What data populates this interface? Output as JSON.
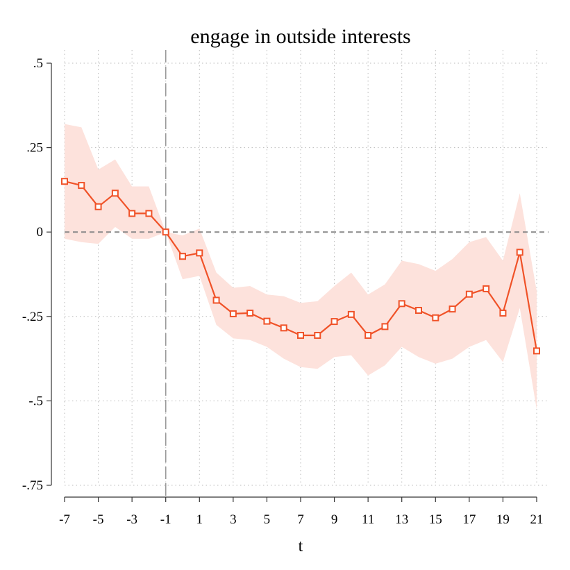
{
  "chart_data": {
    "type": "line",
    "title": "engage in outside interests",
    "xlabel": "t",
    "ylabel": "",
    "xlim": [
      -7,
      21
    ],
    "ylim": [
      -0.75,
      0.5
    ],
    "x_ticks": [
      -7,
      -5,
      -3,
      -1,
      1,
      3,
      5,
      7,
      9,
      11,
      13,
      15,
      17,
      19,
      21
    ],
    "x_tick_labels": [
      "-7",
      "-5",
      "-3",
      "-1",
      "1",
      "3",
      "5",
      "7",
      "9",
      "11",
      "13",
      "15",
      "17",
      "19",
      "21"
    ],
    "y_ticks": [
      0.5,
      0.25,
      0,
      -0.25,
      -0.5,
      -0.75
    ],
    "y_tick_labels": [
      ".5",
      ".25",
      "0",
      "-.25",
      "-.5",
      "-.75"
    ],
    "grid": true,
    "reference_lines": {
      "vertical_x": -1,
      "horizontal_y": 0
    },
    "colors": {
      "line": "#f05228",
      "ci_band": "#fde2dc",
      "ref_line": "#888888",
      "grid": "#bbbbbb",
      "axis": "#333333"
    },
    "series": [
      {
        "x": [
          -7,
          -6,
          -5,
          -4,
          -3,
          -2,
          -1,
          0,
          1,
          2,
          3,
          4,
          5,
          6,
          7,
          8,
          9,
          10,
          11,
          12,
          13,
          14,
          15,
          16,
          17,
          18,
          19,
          20,
          21
        ],
        "values": [
          0.15,
          0.138,
          0.075,
          0.115,
          0.055,
          0.055,
          0.0,
          -0.072,
          -0.062,
          -0.202,
          -0.242,
          -0.24,
          -0.264,
          -0.284,
          -0.306,
          -0.306,
          -0.265,
          -0.244,
          -0.306,
          -0.28,
          -0.212,
          -0.232,
          -0.254,
          -0.228,
          -0.184,
          -0.168,
          -0.24,
          -0.06,
          -0.352
        ],
        "ci_upper": [
          0.32,
          0.31,
          0.185,
          0.215,
          0.135,
          0.135,
          0.0,
          -0.01,
          0.01,
          -0.12,
          -0.165,
          -0.16,
          -0.185,
          -0.19,
          -0.21,
          -0.205,
          -0.16,
          -0.12,
          -0.185,
          -0.155,
          -0.085,
          -0.095,
          -0.115,
          -0.08,
          -0.03,
          -0.015,
          -0.085,
          0.115,
          -0.175
        ],
        "ci_lower": [
          -0.02,
          -0.03,
          -0.035,
          0.015,
          -0.02,
          -0.02,
          0.0,
          -0.14,
          -0.13,
          -0.275,
          -0.315,
          -0.32,
          -0.34,
          -0.375,
          -0.4,
          -0.405,
          -0.37,
          -0.365,
          -0.425,
          -0.395,
          -0.34,
          -0.37,
          -0.39,
          -0.375,
          -0.34,
          -0.32,
          -0.385,
          -0.225,
          -0.525
        ]
      }
    ]
  }
}
